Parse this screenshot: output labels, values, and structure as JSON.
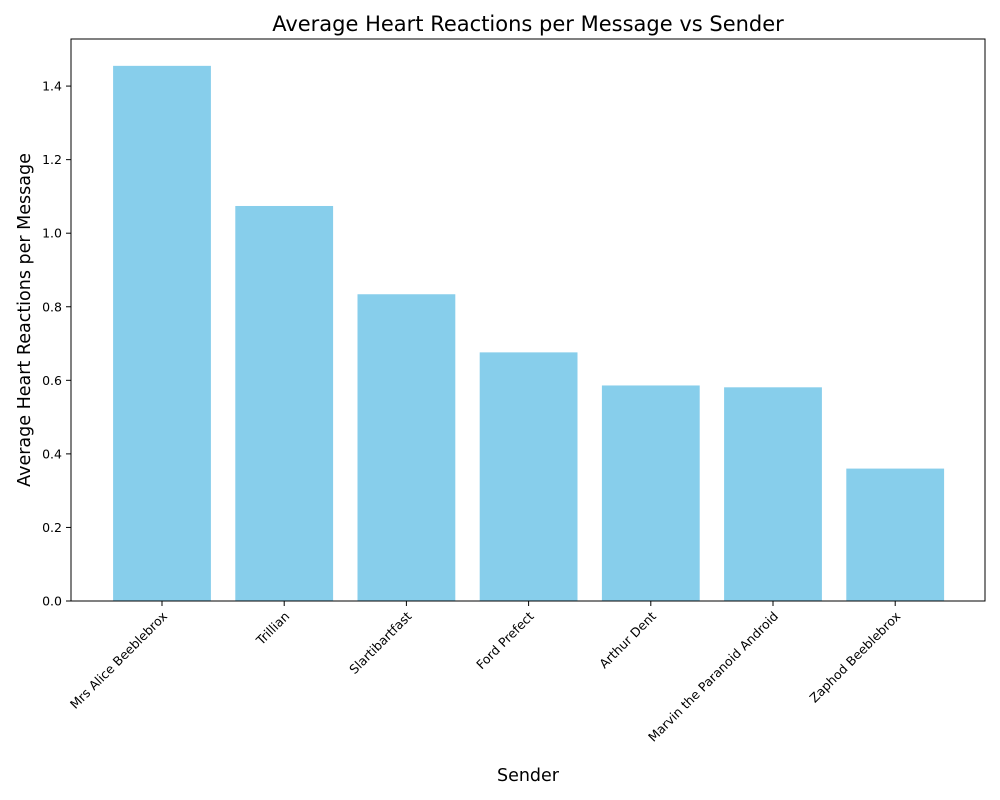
{
  "chart_data": {
    "type": "bar",
    "title": "Average Heart Reactions per Message vs Sender",
    "xlabel": "Sender",
    "ylabel": "Average Heart Reactions per Message",
    "categories": [
      "Mrs Alice Beeblebrox",
      "Trillian",
      "Slartibartfast",
      "Ford Prefect",
      "Arthur Dent",
      "Marvin the Paranoid Android",
      "Zaphod Beeblebrox"
    ],
    "values": [
      1.455,
      1.074,
      0.834,
      0.676,
      0.586,
      0.581,
      0.36
    ],
    "ylim": [
      0,
      1.528
    ],
    "yticks": [
      "0.0",
      "0.2",
      "0.4",
      "0.6",
      "0.8",
      "1.0",
      "1.2",
      "1.4"
    ],
    "bar_color": "#87CEEB",
    "grid": false,
    "xtick_rotation_deg": 45
  }
}
